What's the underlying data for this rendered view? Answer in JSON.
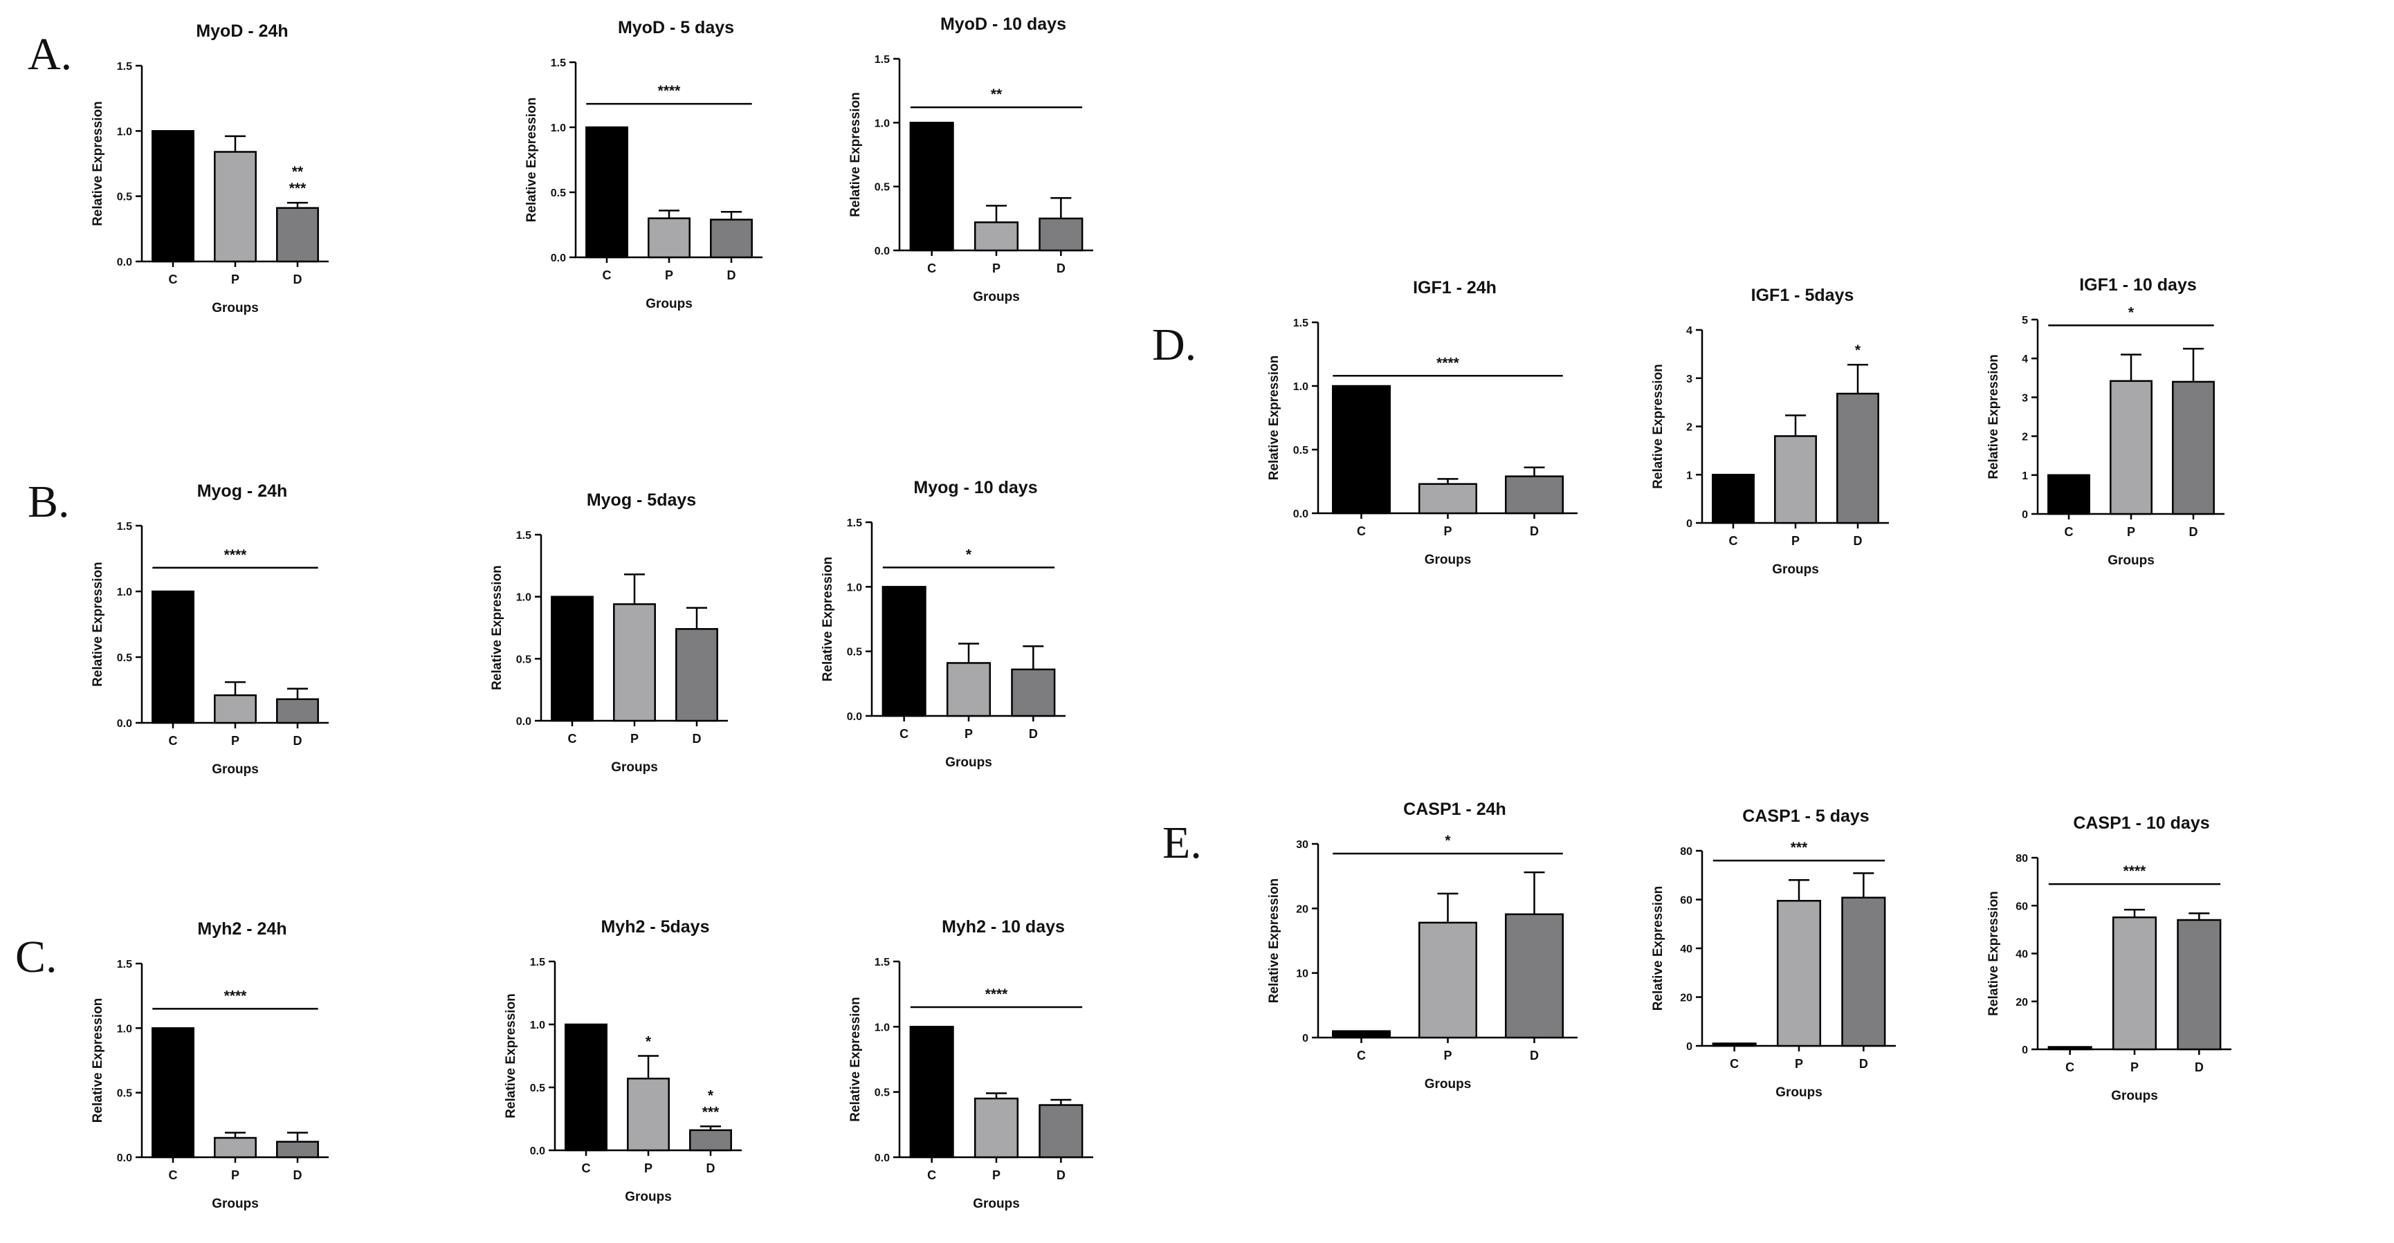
{
  "panel_labels": [
    "A.",
    "B.",
    "C.",
    "D.",
    "E."
  ],
  "colors": {
    "C": "#000000",
    "P": "#a8a8aa",
    "D": "#7d7d7f",
    "axis": "#000000"
  },
  "chart_data": [
    {
      "id": "myod-24h",
      "panel": "A.",
      "type": "bar",
      "title": "MyoD - 24h",
      "xlabel": "Groups",
      "ylabel": "Relative Expression",
      "categories": [
        "C",
        "P",
        "D"
      ],
      "values": [
        1.0,
        0.84,
        0.41
      ],
      "errors": [
        0,
        0.12,
        0.04
      ],
      "ylim": [
        0,
        1.5
      ],
      "yticks": [
        "0.0",
        "0.5",
        "1.0",
        "1.5"
      ],
      "annotations": [
        {
          "bar": 2,
          "lines": [
            "**",
            "***"
          ]
        }
      ]
    },
    {
      "id": "myod-5d",
      "panel": "A.",
      "type": "bar",
      "title": "MyoD - 5 days",
      "xlabel": "Groups",
      "ylabel": "Relative Expression",
      "categories": [
        "C",
        "P",
        "D"
      ],
      "values": [
        1.0,
        0.3,
        0.29
      ],
      "errors": [
        0,
        0.06,
        0.06
      ],
      "ylim": [
        0,
        1.5
      ],
      "yticks": [
        "0.0",
        "0.5",
        "1.0",
        "1.5"
      ],
      "significance": {
        "from": 0,
        "to": 2,
        "y": 1.18,
        "label": "****"
      }
    },
    {
      "id": "myod-10d",
      "panel": "A.",
      "type": "bar",
      "title": "MyoD - 10 days",
      "xlabel": "Groups",
      "ylabel": "Relative Expression",
      "categories": [
        "C",
        "P",
        "D"
      ],
      "values": [
        1.0,
        0.22,
        0.25
      ],
      "errors": [
        0,
        0.13,
        0.16
      ],
      "ylim": [
        0,
        1.5
      ],
      "yticks": [
        "0.0",
        "0.5",
        "1.0",
        "1.5"
      ],
      "significance": {
        "from": 0,
        "to": 2,
        "y": 1.12,
        "label": "**"
      }
    },
    {
      "id": "myog-24h",
      "panel": "B.",
      "type": "bar",
      "title": "Myog - 24h",
      "xlabel": "Groups",
      "ylabel": "Relative Expression",
      "categories": [
        "C",
        "P",
        "D"
      ],
      "values": [
        1.0,
        0.21,
        0.18
      ],
      "errors": [
        0,
        0.1,
        0.08
      ],
      "ylim": [
        0,
        1.5
      ],
      "yticks": [
        "0.0",
        "0.5",
        "1.0",
        "1.5"
      ],
      "significance": {
        "from": 0,
        "to": 2,
        "y": 1.18,
        "label": "****"
      }
    },
    {
      "id": "myog-5d",
      "panel": "B.",
      "type": "bar",
      "title": "Myog - 5days",
      "xlabel": "Groups",
      "ylabel": "Relative Expression",
      "categories": [
        "C",
        "P",
        "D"
      ],
      "values": [
        1.0,
        0.94,
        0.74
      ],
      "errors": [
        0,
        0.24,
        0.17
      ],
      "ylim": [
        0,
        1.5
      ],
      "yticks": [
        "0.0",
        "0.5",
        "1.0",
        "1.5"
      ]
    },
    {
      "id": "myog-10d",
      "panel": "B.",
      "type": "bar",
      "title": "Myog - 10 days",
      "xlabel": "Groups",
      "ylabel": "Relative Expression",
      "categories": [
        "C",
        "P",
        "D"
      ],
      "values": [
        1.0,
        0.41,
        0.36
      ],
      "errors": [
        0,
        0.15,
        0.18
      ],
      "ylim": [
        0,
        1.5
      ],
      "yticks": [
        "0.0",
        "0.5",
        "1.0",
        "1.5"
      ],
      "significance": {
        "from": 0,
        "to": 2,
        "y": 1.15,
        "label": "*"
      }
    },
    {
      "id": "myh2-24h",
      "panel": "C.",
      "type": "bar",
      "title": "Myh2 - 24h",
      "xlabel": "Groups",
      "ylabel": "Relative Expression",
      "categories": [
        "C",
        "P",
        "D"
      ],
      "values": [
        1.0,
        0.15,
        0.12
      ],
      "errors": [
        0,
        0.04,
        0.07
      ],
      "ylim": [
        0,
        1.5
      ],
      "yticks": [
        "0.0",
        "0.5",
        "1.0",
        "1.5"
      ],
      "significance": {
        "from": 0,
        "to": 2,
        "y": 1.15,
        "label": "****"
      }
    },
    {
      "id": "myh2-5d",
      "panel": "C.",
      "type": "bar",
      "title": "Myh2 - 5days",
      "xlabel": "Groups",
      "ylabel": "Relative Expression",
      "categories": [
        "C",
        "P",
        "D"
      ],
      "values": [
        1.0,
        0.57,
        0.16
      ],
      "errors": [
        0,
        0.18,
        0.03
      ],
      "ylim": [
        0,
        1.5
      ],
      "yticks": [
        "0.0",
        "0.5",
        "1.0",
        "1.5"
      ],
      "annotations": [
        {
          "bar": 1,
          "lines": [
            "*"
          ]
        },
        {
          "bar": 2,
          "lines": [
            "*",
            "***"
          ]
        }
      ]
    },
    {
      "id": "myh2-10d",
      "panel": "C.",
      "type": "bar",
      "title": "Myh2 - 10 days",
      "xlabel": "Groups",
      "ylabel": "Relative Expression",
      "categories": [
        "C",
        "P",
        "D"
      ],
      "values": [
        1.0,
        0.45,
        0.4
      ],
      "errors": [
        0,
        0.04,
        0.04
      ],
      "ylim": [
        0,
        1.5
      ],
      "yticks": [
        "0.0",
        "0.5",
        "1.0",
        "1.5"
      ],
      "significance": {
        "from": 0,
        "to": 2,
        "y": 1.15,
        "label": "****"
      }
    },
    {
      "id": "igf1-24h",
      "panel": "D.",
      "type": "bar",
      "title": "IGF1 - 24h",
      "xlabel": "Groups",
      "ylabel": "Relative Expression",
      "categories": [
        "C",
        "P",
        "D"
      ],
      "values": [
        1.0,
        0.23,
        0.29
      ],
      "errors": [
        0,
        0.04,
        0.07
      ],
      "ylim": [
        0,
        1.5
      ],
      "yticks": [
        "0.0",
        "0.5",
        "1.0",
        "1.5"
      ],
      "significance": {
        "from": 0,
        "to": 2,
        "y": 1.08,
        "label": "****"
      }
    },
    {
      "id": "igf1-5d",
      "panel": "D.",
      "type": "bar",
      "title": "IGF1 - 5days",
      "xlabel": "Groups",
      "ylabel": "Relative Expression",
      "categories": [
        "C",
        "P",
        "D"
      ],
      "values": [
        1.0,
        1.8,
        2.68
      ],
      "errors": [
        0,
        0.43,
        0.6
      ],
      "ylim": [
        0,
        4
      ],
      "yticks": [
        "0",
        "1",
        "2",
        "3",
        "4"
      ],
      "annotations": [
        {
          "bar": 2,
          "lines": [
            "*"
          ]
        }
      ]
    },
    {
      "id": "igf1-10d",
      "panel": "D.",
      "type": "bar",
      "title": "IGF1 - 10 days",
      "xlabel": "Groups",
      "ylabel": "Relative Expression",
      "categories": [
        "C",
        "P",
        "D"
      ],
      "values": [
        1.0,
        3.42,
        3.4
      ],
      "errors": [
        0,
        0.68,
        0.85
      ],
      "ylim": [
        0,
        5
      ],
      "yticks": [
        "0",
        "1",
        "2",
        "3",
        "4",
        "5"
      ],
      "significance": {
        "from": 0,
        "to": 2,
        "y": 4.85,
        "label": "*"
      }
    },
    {
      "id": "casp1-24h",
      "panel": "E.",
      "type": "bar",
      "title": "CASP1 - 24h",
      "xlabel": "Groups",
      "ylabel": "Relative Expression",
      "categories": [
        "C",
        "P",
        "D"
      ],
      "values": [
        1.0,
        17.8,
        19.1
      ],
      "errors": [
        0,
        4.5,
        6.5
      ],
      "ylim": [
        0,
        30
      ],
      "yticks": [
        "0",
        "10",
        "20",
        "30"
      ],
      "significance": {
        "from": 0,
        "to": 2,
        "y": 28.5,
        "label": "*"
      }
    },
    {
      "id": "casp1-5d",
      "panel": "E.",
      "type": "bar",
      "title": "CASP1 - 5 days",
      "xlabel": "Groups",
      "ylabel": "Relative Expression",
      "categories": [
        "C",
        "P",
        "D"
      ],
      "values": [
        1.0,
        59.5,
        60.8
      ],
      "errors": [
        0,
        8.5,
        10
      ],
      "ylim": [
        0,
        80
      ],
      "yticks": [
        "0",
        "20",
        "40",
        "60",
        "80"
      ],
      "significance": {
        "from": 0,
        "to": 2,
        "y": 76,
        "label": "***"
      }
    },
    {
      "id": "casp1-10d",
      "panel": "E.",
      "type": "bar",
      "title": "CASP1 - 10 days",
      "xlabel": "Groups",
      "ylabel": "Relative Expression",
      "categories": [
        "C",
        "P",
        "D"
      ],
      "values": [
        1.0,
        55.1,
        54.0
      ],
      "errors": [
        0,
        3.2,
        2.8
      ],
      "ylim": [
        0,
        80
      ],
      "yticks": [
        "0",
        "20",
        "40",
        "60",
        "80"
      ],
      "significance": {
        "from": 0,
        "to": 2,
        "y": 69,
        "label": "****"
      }
    }
  ]
}
